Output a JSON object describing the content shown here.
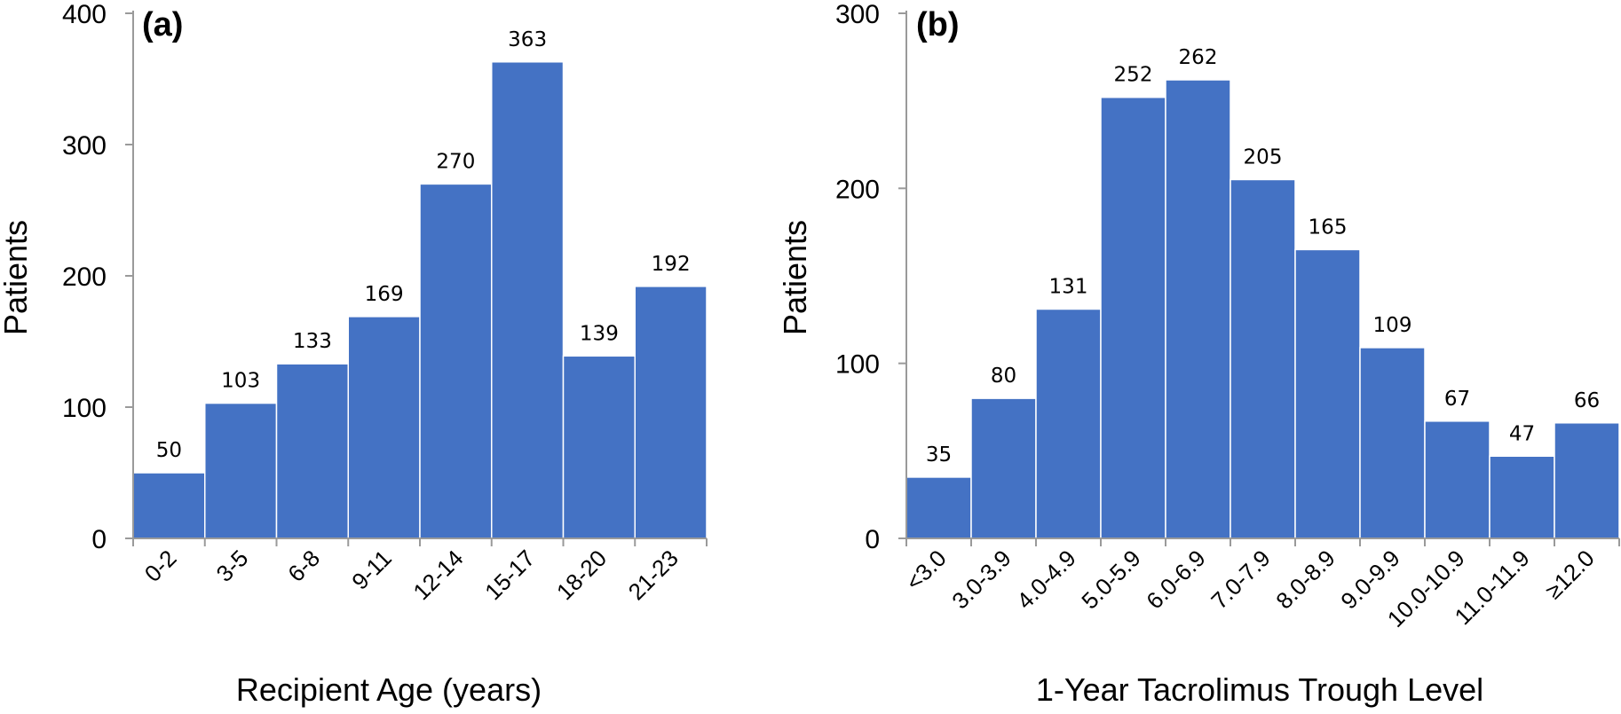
{
  "chart_data": [
    {
      "type": "bar",
      "panel_label": "(a)",
      "categories": [
        "0-2",
        "3-5",
        "6-8",
        "9-11",
        "12-14",
        "15-17",
        "18-20",
        "21-23"
      ],
      "values": [
        50,
        103,
        133,
        169,
        270,
        363,
        139,
        192
      ],
      "xlabel": "Recipient Age (years)",
      "ylabel": "Patients",
      "ylim": [
        0,
        400
      ],
      "yticks": [
        0,
        100,
        200,
        300,
        400
      ],
      "bar_color": "#4472C4",
      "grid": false
    },
    {
      "type": "bar",
      "panel_label": "(b)",
      "categories": [
        "<3.0",
        "3.0-3.9",
        "4.0-4.9",
        "5.0-5.9",
        "6.0-6.9",
        "7.0-7.9",
        "8.0-8.9",
        "9.0-9.9",
        "10.0-10.9",
        "11.0-11.9",
        "≥12.0"
      ],
      "values": [
        35,
        80,
        131,
        252,
        262,
        205,
        165,
        109,
        67,
        47,
        66
      ],
      "xlabel": "1-Year Tacrolimus Trough Level",
      "ylabel": "Patients",
      "ylim": [
        0,
        300
      ],
      "yticks": [
        0,
        100,
        200,
        300
      ],
      "bar_color": "#4472C4",
      "grid": false
    }
  ]
}
